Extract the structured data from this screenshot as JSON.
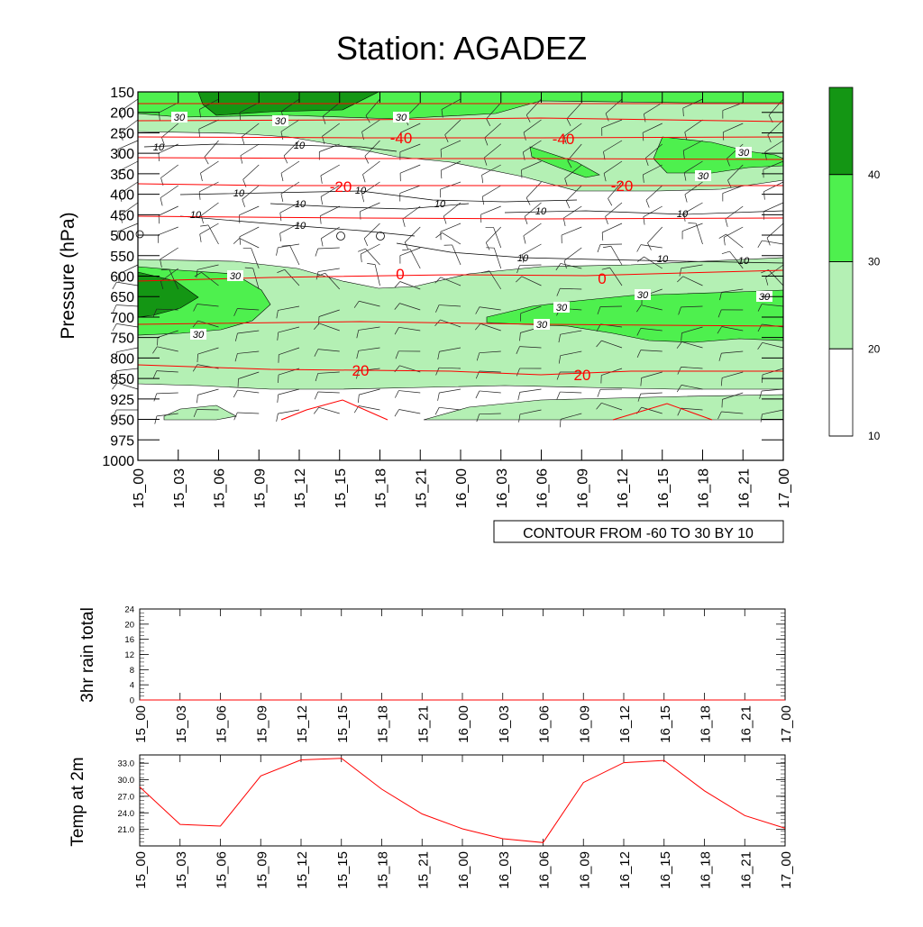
{
  "title": "Station: AGADEZ",
  "time_labels": [
    "15_00",
    "15_03",
    "15_06",
    "15_09",
    "15_12",
    "15_15",
    "15_18",
    "15_21",
    "16_00",
    "16_03",
    "16_06",
    "16_09",
    "16_12",
    "16_15",
    "16_18",
    "16_21",
    "17_00"
  ],
  "chart_data": [
    {
      "type": "heatmap",
      "title": "Station: AGADEZ",
      "ylabel": "Pressure (hPa)",
      "y_ticks": [
        150,
        200,
        250,
        300,
        350,
        400,
        450,
        500,
        550,
        600,
        650,
        700,
        750,
        800,
        850,
        925,
        950,
        975,
        1000
      ],
      "footer": "CONTOUR FROM -60 TO 30 BY 10",
      "colorbar": {
        "levels": [
          10,
          20,
          30,
          40
        ],
        "colors": [
          "#ffffff",
          "#b4f0b4",
          "#4ef04e",
          "#149614"
        ]
      },
      "temperature_contours": [
        {
          "label": "-40",
          "value": -40
        },
        {
          "label": "-20",
          "value": -20
        },
        {
          "label": "0",
          "value": 0
        },
        {
          "label": "20",
          "value": 20
        }
      ],
      "shaded_labels": [
        "30",
        "30",
        "30",
        "30",
        "30",
        "30",
        "30",
        "30",
        "30",
        "30",
        "30"
      ],
      "wind_speed_labels": [
        "10",
        "10",
        "10",
        "10",
        "10",
        "10",
        "10",
        "10",
        "10",
        "10",
        "10",
        "10",
        "10"
      ]
    },
    {
      "type": "line",
      "ylabel": "3hr rain total",
      "y_ticks": [
        "0",
        "4",
        "8",
        "12",
        "16",
        "20",
        "24"
      ],
      "ylim": [
        0,
        24
      ],
      "values": [
        0,
        0,
        0,
        0,
        0,
        0,
        0,
        0,
        0,
        0,
        0,
        0,
        0,
        0,
        0,
        0,
        0
      ]
    },
    {
      "type": "line",
      "ylabel": "Temp at 2m",
      "y_ticks": [
        "21.0",
        "24.0",
        "27.0",
        "30.0",
        "33.0"
      ],
      "ylim": [
        18.0,
        34.5
      ],
      "color": "#ff0000",
      "values": [
        28.7,
        21.9,
        21.6,
        30.7,
        33.6,
        33.9,
        28.3,
        23.8,
        21.1,
        19.3,
        18.6,
        29.5,
        33.1,
        33.5,
        28.0,
        23.5,
        21.2
      ]
    }
  ]
}
